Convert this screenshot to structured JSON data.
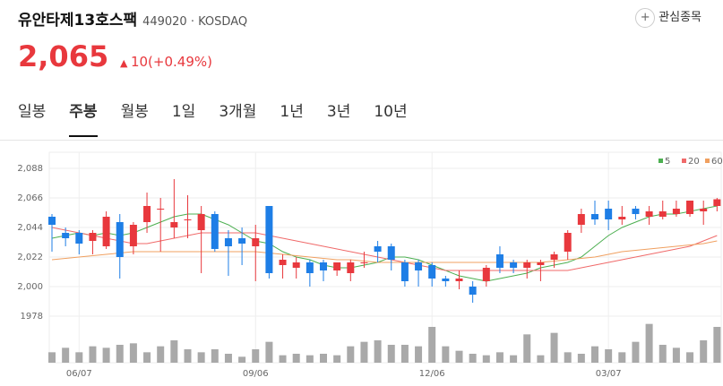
{
  "header": {
    "title": "유안타제13호스팩",
    "code": "449020",
    "market": "KOSDAQ",
    "price": "2,065",
    "change": "10(+0.49%)",
    "favorite": "관심종목"
  },
  "tabs": [
    "일봉",
    "주봉",
    "월봉",
    "1일",
    "3개월",
    "1년",
    "3년",
    "10년"
  ],
  "chart_data": {
    "type": "candlestick",
    "categories": [
      null,
      null,
      "06/07",
      null,
      null,
      null,
      null,
      null,
      null,
      null,
      null,
      null,
      null,
      null,
      null,
      "09/06",
      null,
      null,
      null,
      null,
      null,
      null,
      null,
      null,
      null,
      null,
      null,
      null,
      "12/06",
      null,
      null,
      null,
      null,
      null,
      null,
      null,
      null,
      null,
      null,
      null,
      null,
      "03/07",
      null,
      null,
      null,
      null,
      null,
      null,
      null,
      null
    ],
    "open": [
      2052,
      2040,
      2040,
      2034,
      2030,
      2048,
      2030,
      2048,
      2058,
      2044,
      2050,
      2042,
      2054,
      2036,
      2036,
      2030,
      2060,
      2016,
      2014,
      2018,
      2018,
      2012,
      2010,
      2018,
      2030,
      2030,
      2018,
      2018,
      2016,
      2006,
      2004,
      2000,
      2004,
      2024,
      2018,
      2014,
      2016,
      2020,
      2026,
      2046,
      2054,
      2058,
      2050,
      2058,
      2052,
      2052,
      2054,
      2054,
      2056,
      2060
    ],
    "high": [
      2054,
      2044,
      2042,
      2042,
      2056,
      2054,
      2048,
      2070,
      2066,
      2080,
      2068,
      2060,
      2056,
      2042,
      2044,
      2046,
      2060,
      2024,
      2022,
      2020,
      2020,
      2018,
      2020,
      2026,
      2034,
      2032,
      2020,
      2020,
      2018,
      2008,
      2012,
      2004,
      2016,
      2030,
      2020,
      2020,
      2020,
      2026,
      2042,
      2058,
      2064,
      2064,
      2060,
      2060,
      2060,
      2064,
      2064,
      2064,
      2064,
      2066
    ],
    "low": [
      2026,
      2030,
      2024,
      2024,
      2028,
      2006,
      2024,
      2040,
      2026,
      2036,
      2036,
      2010,
      2026,
      2008,
      2016,
      2004,
      2006,
      2006,
      2006,
      2000,
      2004,
      2008,
      2004,
      2014,
      2018,
      2012,
      2000,
      2000,
      2000,
      2000,
      1998,
      1988,
      2000,
      2010,
      2010,
      2006,
      2004,
      2014,
      2020,
      2040,
      2046,
      2042,
      2046,
      2050,
      2046,
      2050,
      2052,
      2052,
      2046,
      2056
    ],
    "close": [
      2046,
      2036,
      2032,
      2040,
      2052,
      2022,
      2046,
      2060,
      2058,
      2048,
      2050,
      2054,
      2028,
      2030,
      2032,
      2036,
      2010,
      2020,
      2018,
      2010,
      2012,
      2018,
      2018,
      2018,
      2026,
      2020,
      2004,
      2012,
      2006,
      2004,
      2006,
      1994,
      2014,
      2014,
      2014,
      2018,
      2018,
      2024,
      2040,
      2054,
      2050,
      2050,
      2052,
      2054,
      2056,
      2056,
      2058,
      2064,
      2058,
      2065
    ],
    "volume": [
      14,
      20,
      14,
      22,
      20,
      24,
      26,
      14,
      22,
      30,
      18,
      14,
      18,
      12,
      8,
      18,
      28,
      10,
      12,
      10,
      12,
      10,
      22,
      28,
      30,
      24,
      24,
      22,
      48,
      22,
      16,
      12,
      10,
      14,
      10,
      38,
      10,
      40,
      14,
      12,
      22,
      18,
      14,
      28,
      52,
      24,
      20,
      14,
      30,
      48
    ],
    "volume_ylim": [
      0,
      60
    ],
    "up_color": "#e8383d",
    "down_color": "#1e7ee6",
    "volume_color": "#a9a9a9",
    "ma": [
      {
        "name": "5",
        "color": "#4caf50",
        "values": [
          2036,
          2038,
          2040,
          2038,
          2040,
          2038,
          2040,
          2044,
          2048,
          2052,
          2054,
          2054,
          2050,
          2046,
          2040,
          2034,
          2032,
          2026,
          2022,
          2020,
          2016,
          2014,
          2014,
          2016,
          2018,
          2022,
          2022,
          2020,
          2016,
          2012,
          2008,
          2006,
          2004,
          2006,
          2008,
          2010,
          2014,
          2016,
          2018,
          2022,
          2030,
          2038,
          2044,
          2048,
          2052,
          2054,
          2054,
          2056,
          2058,
          2060
        ]
      },
      {
        "name": "20",
        "color": "#f06a6a",
        "values": [
          2044,
          2042,
          2040,
          2038,
          2036,
          2034,
          2032,
          2032,
          2034,
          2036,
          2038,
          2040,
          2040,
          2040,
          2040,
          2040,
          2038,
          2036,
          2034,
          2032,
          2030,
          2028,
          2026,
          2024,
          2022,
          2020,
          2018,
          2016,
          2014,
          2012,
          2012,
          2012,
          2012,
          2012,
          2012,
          2012,
          2012,
          2012,
          2012,
          2014,
          2016,
          2018,
          2020,
          2022,
          2024,
          2026,
          2028,
          2030,
          2034,
          2038
        ]
      },
      {
        "name": "60",
        "color": "#f0a060",
        "values": [
          2020,
          2021,
          2022,
          2023,
          2024,
          2025,
          2026,
          2026,
          2026,
          2026,
          2026,
          2026,
          2026,
          2026,
          2026,
          2026,
          2025,
          2024,
          2023,
          2022,
          2021,
          2020,
          2020,
          2019,
          2018,
          2018,
          2018,
          2018,
          2018,
          2018,
          2018,
          2018,
          2018,
          2018,
          2018,
          2018,
          2018,
          2019,
          2020,
          2021,
          2022,
          2024,
          2026,
          2027,
          2028,
          2029,
          2030,
          2031,
          2032,
          2034
        ]
      }
    ],
    "ylim": [
      1978,
      2088
    ],
    "yticks": [
      1978,
      {
        "value": 2000,
        "label": "2,000"
      },
      {
        "value": 2022,
        "label": "2,022"
      },
      {
        "value": 2044,
        "label": "2,044"
      },
      {
        "value": 2066,
        "label": "2,066"
      },
      {
        "value": 2088,
        "label": "2,088"
      }
    ],
    "grid": true
  }
}
